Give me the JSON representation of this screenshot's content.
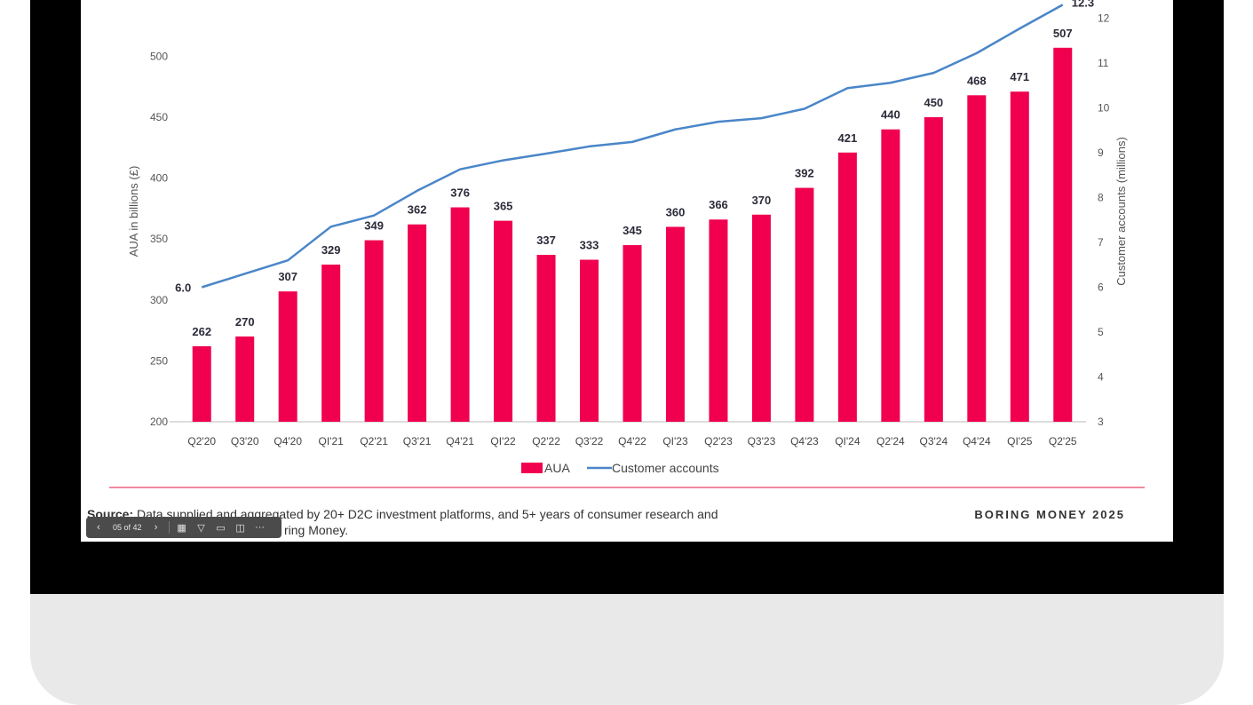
{
  "slide": {
    "source_label": "Source:",
    "source_text": "Data supplied and aggregated by 20+ D2C investment platforms, and 5+ years of consumer research and",
    "source_text_2": "ring Money.",
    "brand": "BORING MONEY 2025"
  },
  "viewer_toolbar": {
    "prev_icon": "chevron-left-icon",
    "page_indicator": "05 of 42",
    "next_icon": "chevron-right-icon",
    "tools": [
      "grid-icon",
      "filter-icon",
      "video-icon",
      "comment-icon",
      "more-icon"
    ],
    "prev_glyph": "‹",
    "next_glyph": "›",
    "grid_glyph": "▦",
    "filter_glyph": "▽",
    "video_glyph": "▭",
    "comment_glyph": "◫",
    "more_glyph": "···"
  },
  "chart_data": {
    "type": "bar",
    "categories": [
      "Q2'20",
      "Q3'20",
      "Q4'20",
      "QI'21",
      "Q2'21",
      "Q3'21",
      "Q4'21",
      "QI'22",
      "Q2'22",
      "Q3'22",
      "Q4'22",
      "QI'23",
      "Q2'23",
      "Q3'23",
      "Q4'23",
      "QI'24",
      "Q2'24",
      "Q3'24",
      "Q4'24",
      "QI'25",
      "Q2'25"
    ],
    "series": [
      {
        "name": "AUA",
        "type": "bar",
        "axis": "left",
        "color": "#f0004f",
        "values": [
          262,
          270,
          307,
          329,
          349,
          362,
          376,
          365,
          337,
          333,
          345,
          360,
          366,
          370,
          392,
          421,
          440,
          450,
          468,
          471,
          507
        ]
      },
      {
        "name": "Customer accounts",
        "type": "line",
        "axis": "right",
        "color": "#4a86c8",
        "values": [
          6.0,
          6.3,
          6.6,
          7.35,
          7.6,
          8.15,
          8.63,
          8.83,
          8.98,
          9.14,
          9.24,
          9.52,
          9.69,
          9.77,
          9.98,
          10.44,
          10.56,
          10.78,
          11.22,
          11.77,
          12.3
        ],
        "labels": {
          "0": "6.0",
          "20": "12.3"
        }
      }
    ],
    "ylabel": "AUA in billions (£)",
    "y2label": "Customer accounts (millions)",
    "ylim": [
      200,
      550
    ],
    "yticks": [
      200,
      250,
      300,
      350,
      400,
      450,
      500
    ],
    "y2lim": [
      3,
      12.5
    ],
    "y2ticks": [
      3,
      4,
      5,
      6,
      7,
      8,
      9,
      10,
      11,
      12
    ],
    "grid": false,
    "legend_position": "bottom-center"
  }
}
